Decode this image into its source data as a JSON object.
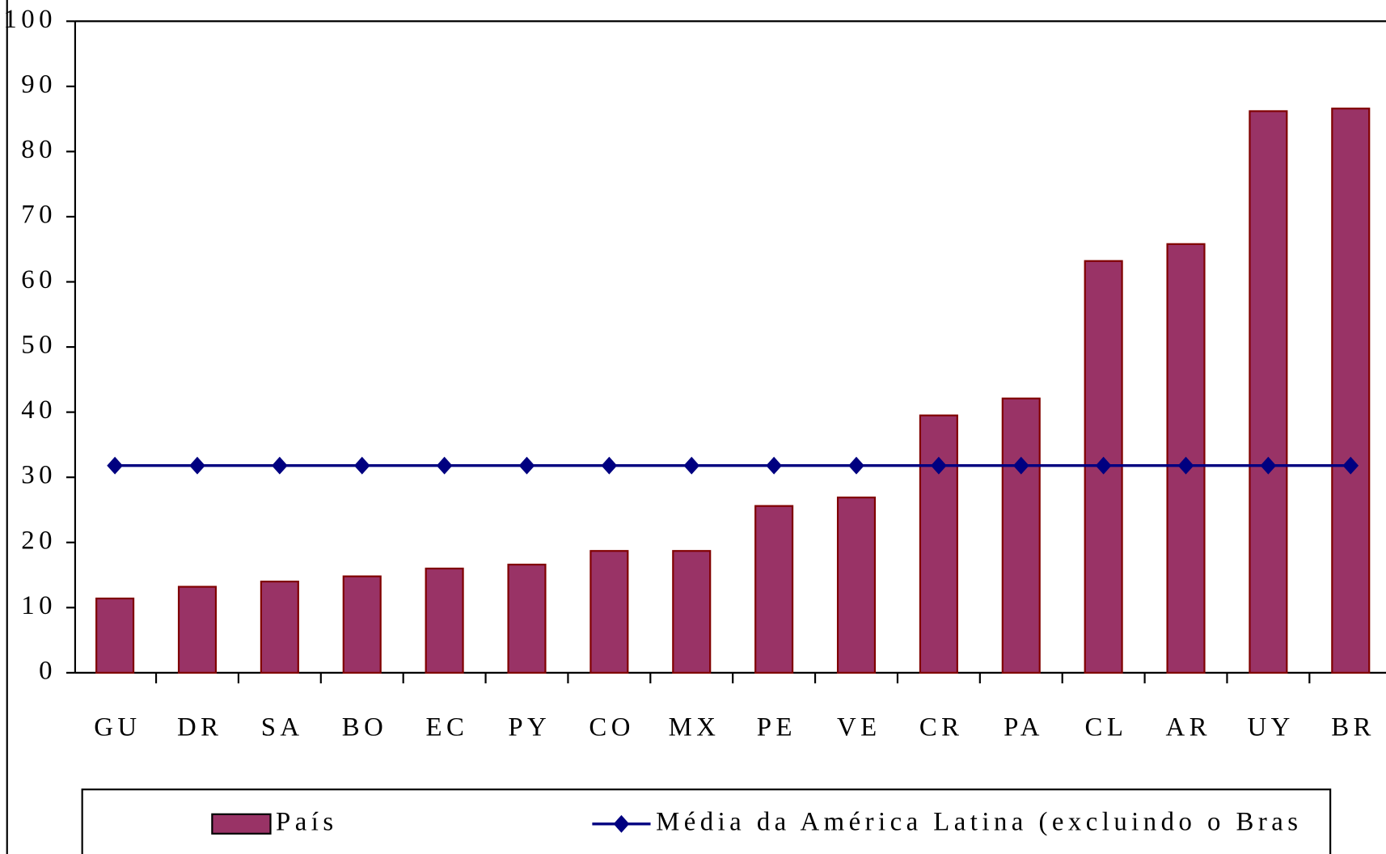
{
  "chart_data": {
    "type": "bar",
    "categories": [
      "GU",
      "DR",
      "SA",
      "BO",
      "EC",
      "PY",
      "CO",
      "MX",
      "PE",
      "VE",
      "CR",
      "PA",
      "CL",
      "AR",
      "UY",
      "BR"
    ],
    "series": [
      {
        "name": "País",
        "type": "bar",
        "color": "#993366",
        "values": [
          11.4,
          13.2,
          14.0,
          14.8,
          16.0,
          16.6,
          18.7,
          18.7,
          25.6,
          26.9,
          39.5,
          42.1,
          63.2,
          65.8,
          86.2,
          86.6
        ]
      },
      {
        "name": "Média da América Latina (excluindo o Bras",
        "type": "line",
        "color": "#000080",
        "values": [
          31.8,
          31.8,
          31.8,
          31.8,
          31.8,
          31.8,
          31.8,
          31.8,
          31.8,
          31.8,
          31.8,
          31.8,
          31.8,
          31.8,
          31.8,
          31.8
        ]
      }
    ],
    "ylim": [
      0,
      100
    ],
    "yticks": [
      0,
      10,
      20,
      30,
      40,
      50,
      60,
      70,
      80,
      90,
      100
    ],
    "legend": "bottom"
  }
}
